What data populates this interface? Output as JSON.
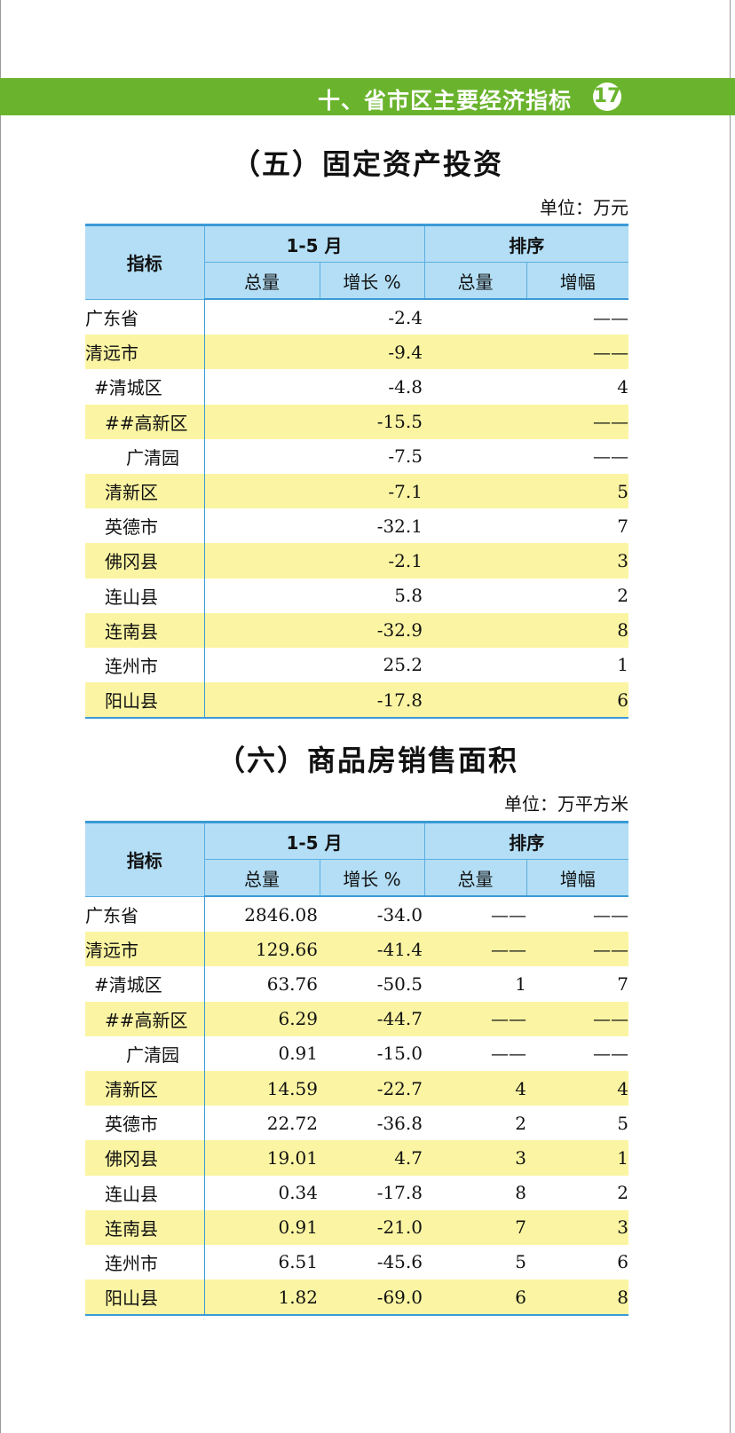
{
  "header": {
    "chapter": "十、省市区主要经济指标",
    "page": "17",
    "color": "#6ab42d"
  },
  "colors": {
    "header_bg": "#b3def5",
    "highlight_row": "#fbf5a3",
    "border": "#3a9ad6"
  },
  "table_headers": {
    "indicator": "指标",
    "period": "1-5 月",
    "rank": "排序",
    "total": "总量",
    "growth": "增长 %",
    "rank_total": "总量",
    "rank_growth": "增幅"
  },
  "sections": [
    {
      "title": "（五）固定资产投资",
      "unit": "单位：万元",
      "rows": [
        {
          "name": "广东省",
          "indent": 0,
          "total": "",
          "growth": "-2.4",
          "rank_total": "",
          "rank_growth": "——"
        },
        {
          "name": "清远市",
          "indent": 0,
          "total": "",
          "growth": "-9.4",
          "rank_total": "",
          "rank_growth": "——"
        },
        {
          "name": "#清城区",
          "indent": 1,
          "total": "",
          "growth": "-4.8",
          "rank_total": "",
          "rank_growth": "4"
        },
        {
          "name": "##高新区",
          "indent": 2,
          "total": "",
          "growth": "-15.5",
          "rank_total": "",
          "rank_growth": "——"
        },
        {
          "name": "广清园",
          "indent": 3,
          "total": "",
          "growth": "-7.5",
          "rank_total": "",
          "rank_growth": "——"
        },
        {
          "name": "清新区",
          "indent": 2,
          "total": "",
          "growth": "-7.1",
          "rank_total": "",
          "rank_growth": "5"
        },
        {
          "name": "英德市",
          "indent": 2,
          "total": "",
          "growth": "-32.1",
          "rank_total": "",
          "rank_growth": "7"
        },
        {
          "name": "佛冈县",
          "indent": 2,
          "total": "",
          "growth": "-2.1",
          "rank_total": "",
          "rank_growth": "3"
        },
        {
          "name": "连山县",
          "indent": 2,
          "total": "",
          "growth": "5.8",
          "rank_total": "",
          "rank_growth": "2"
        },
        {
          "name": "连南县",
          "indent": 2,
          "total": "",
          "growth": "-32.9",
          "rank_total": "",
          "rank_growth": "8"
        },
        {
          "name": "连州市",
          "indent": 2,
          "total": "",
          "growth": "25.2",
          "rank_total": "",
          "rank_growth": "1"
        },
        {
          "name": "阳山县",
          "indent": 2,
          "total": "",
          "growth": "-17.8",
          "rank_total": "",
          "rank_growth": "6"
        }
      ]
    },
    {
      "title": "（六）商品房销售面积",
      "unit": "单位：万平方米",
      "rows": [
        {
          "name": "广东省",
          "indent": 0,
          "total": "2846.08",
          "growth": "-34.0",
          "rank_total": "——",
          "rank_growth": "——"
        },
        {
          "name": "清远市",
          "indent": 0,
          "total": "129.66",
          "growth": "-41.4",
          "rank_total": "——",
          "rank_growth": "——"
        },
        {
          "name": "#清城区",
          "indent": 1,
          "total": "63.76",
          "growth": "-50.5",
          "rank_total": "1",
          "rank_growth": "7"
        },
        {
          "name": "##高新区",
          "indent": 2,
          "total": "6.29",
          "growth": "-44.7",
          "rank_total": "——",
          "rank_growth": "——"
        },
        {
          "name": "广清园",
          "indent": 3,
          "total": "0.91",
          "growth": "-15.0",
          "rank_total": "——",
          "rank_growth": "——"
        },
        {
          "name": "清新区",
          "indent": 2,
          "total": "14.59",
          "growth": "-22.7",
          "rank_total": "4",
          "rank_growth": "4"
        },
        {
          "name": "英德市",
          "indent": 2,
          "total": "22.72",
          "growth": "-36.8",
          "rank_total": "2",
          "rank_growth": "5"
        },
        {
          "name": "佛冈县",
          "indent": 2,
          "total": "19.01",
          "growth": "4.7",
          "rank_total": "3",
          "rank_growth": "1"
        },
        {
          "name": "连山县",
          "indent": 2,
          "total": "0.34",
          "growth": "-17.8",
          "rank_total": "8",
          "rank_growth": "2"
        },
        {
          "name": "连南县",
          "indent": 2,
          "total": "0.91",
          "growth": "-21.0",
          "rank_total": "7",
          "rank_growth": "3"
        },
        {
          "name": "连州市",
          "indent": 2,
          "total": "6.51",
          "growth": "-45.6",
          "rank_total": "5",
          "rank_growth": "6"
        },
        {
          "name": "阳山县",
          "indent": 2,
          "total": "1.82",
          "growth": "-69.0",
          "rank_total": "6",
          "rank_growth": "8"
        }
      ]
    }
  ]
}
